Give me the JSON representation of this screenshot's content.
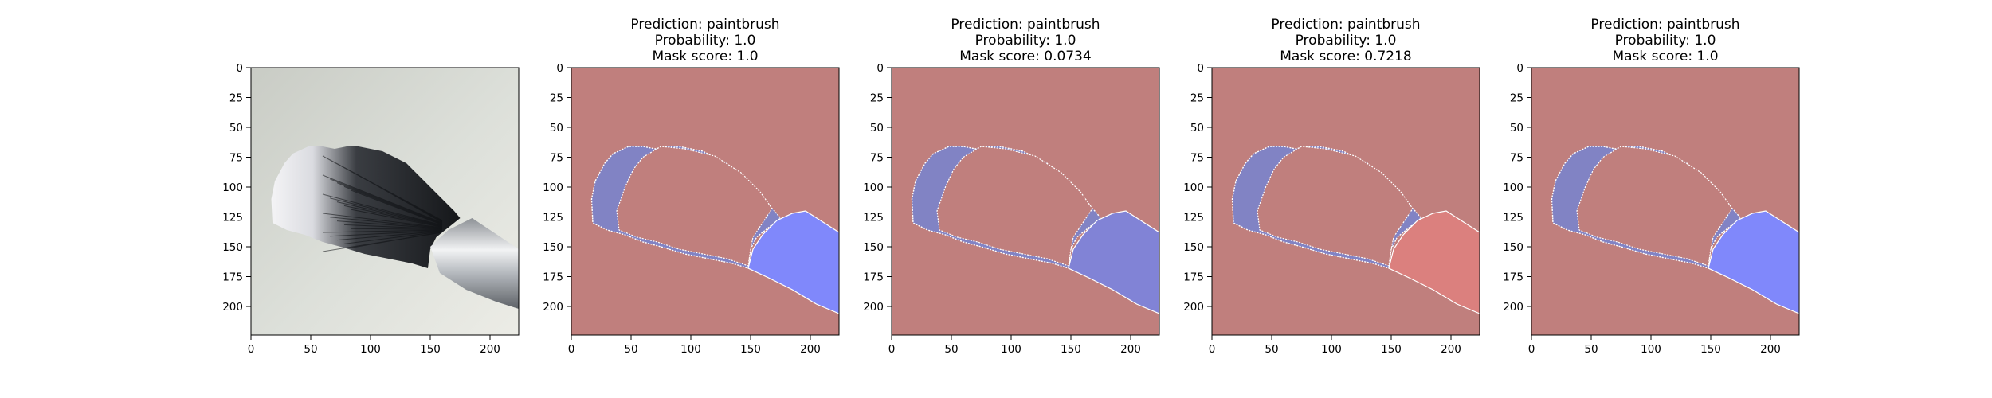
{
  "chart_data": [
    {
      "type": "image",
      "title_lines": [],
      "xlim": [
        0,
        224
      ],
      "ylim": [
        224,
        0
      ],
      "xticks": [
        0,
        50,
        100,
        150,
        200
      ],
      "yticks": [
        0,
        25,
        50,
        75,
        100,
        125,
        150,
        175,
        200
      ],
      "content": "photo-paintbrush"
    },
    {
      "type": "image",
      "title_lines": [
        "Prediction: paintbrush",
        "Probability: 1.0",
        "Mask score: 1.0"
      ],
      "xlim": [
        0,
        224
      ],
      "ylim": [
        224,
        0
      ],
      "xticks": [
        0,
        50,
        100,
        150,
        200
      ],
      "yticks": [
        0,
        25,
        50,
        75,
        100,
        125,
        150,
        175,
        200
      ],
      "content": "mask-overlay",
      "ferrule_color": "#8088fb"
    },
    {
      "type": "image",
      "title_lines": [
        "Prediction: paintbrush",
        "Probability: 1.0",
        "Mask score: 0.0734"
      ],
      "xlim": [
        0,
        224
      ],
      "ylim": [
        224,
        0
      ],
      "xticks": [
        0,
        50,
        100,
        150,
        200
      ],
      "yticks": [
        0,
        25,
        50,
        75,
        100,
        125,
        150,
        175,
        200
      ],
      "content": "mask-overlay",
      "ferrule_color": "#8183d6"
    },
    {
      "type": "image",
      "title_lines": [
        "Prediction: paintbrush",
        "Probability: 1.0",
        "Mask score: 0.7218"
      ],
      "xlim": [
        0,
        224
      ],
      "ylim": [
        224,
        0
      ],
      "xticks": [
        0,
        50,
        100,
        150,
        200
      ],
      "yticks": [
        0,
        25,
        50,
        75,
        100,
        125,
        150,
        175,
        200
      ],
      "content": "mask-overlay",
      "ferrule_color": "#db807e"
    },
    {
      "type": "image",
      "title_lines": [
        "Prediction: paintbrush",
        "Probability: 1.0",
        "Mask score: 1.0"
      ],
      "xlim": [
        0,
        224
      ],
      "ylim": [
        224,
        0
      ],
      "xticks": [
        0,
        50,
        100,
        150,
        200
      ],
      "yticks": [
        0,
        25,
        50,
        75,
        100,
        125,
        150,
        175,
        200
      ],
      "content": "mask-overlay",
      "ferrule_color": "#8088fb"
    }
  ],
  "colors": {
    "background_mask": "#c07f7d",
    "bristle_mask": "#8183c4",
    "outline": "#ffffff"
  }
}
